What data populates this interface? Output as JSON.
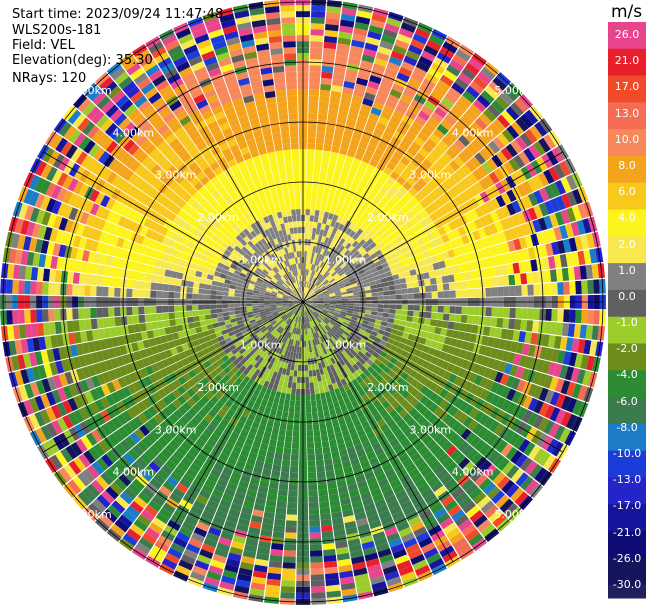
{
  "header": {
    "start_time": "Start time: 2023/09/24 11:47:48",
    "instrument": "WLS200s-181",
    "field": "Field: VEL",
    "elevation": "Elevation(deg): 35.30",
    "nrays": "NRays: 120"
  },
  "colorbar": {
    "unit": "m/s",
    "ticks": [
      "26.0",
      "21.0",
      "17.0",
      "13.0",
      "10.0",
      "8.0",
      "6.0",
      "4.0",
      "2.0",
      "1.0",
      "0.0",
      "-1.0",
      "-2.0",
      "-4.0",
      "-6.0",
      "-8.0",
      "-10.0",
      "-13.0",
      "-17.0",
      "-21.0",
      "-26.0",
      "-30.0"
    ],
    "colors": [
      "#e8458c",
      "#e8458c",
      "#e8202c",
      "#e8202c",
      "#f04a28",
      "#f04a28",
      "#f46c54",
      "#f46c54",
      "#f6885c",
      "#f6885c",
      "#f4a41c",
      "#f4a41c",
      "#f8c81c",
      "#f8c81c",
      "#fcf41c",
      "#fcf41c",
      "#f8e850",
      "#f8e850",
      "#808080",
      "#808080",
      "#606060",
      "#606060",
      "#9ccc2c",
      "#9ccc2c",
      "#6c8c1c",
      "#6c8c1c",
      "#2c8c34",
      "#2c8c34",
      "#3a7c4c",
      "#3a7c4c",
      "#1c7cc8",
      "#1c7cc8",
      "#1c3cd8",
      "#1c3cd8",
      "#2424c8",
      "#2424c8",
      "#14149c",
      "#14149c",
      "#0c0c74",
      "#0c0c74",
      "#14145c",
      "#14145c",
      "#20205c"
    ]
  },
  "chart_data": {
    "type": "heatmap",
    "plot_kind": "PPI radial velocity",
    "field": "VEL",
    "units": "m/s",
    "nrays": 120,
    "elevation_deg": 35.3,
    "range_rings_km": [
      1.0,
      2.0,
      3.0,
      4.0,
      5.0
    ],
    "range_ring_labels": [
      "1.00km",
      "2.00km",
      "3.00km",
      "4.00km",
      "5.00km"
    ],
    "spoke_angles_deg": [
      0,
      30,
      60,
      90,
      120,
      150,
      180,
      210,
      240,
      270,
      300,
      330
    ],
    "color_scale_min": -30.0,
    "color_scale_max": 26.0,
    "velocity_pattern": [
      {
        "range_km_max": 1.5,
        "north_half": 1.0,
        "south_half": -1.0
      },
      {
        "range_km_max": 2.5,
        "north_half": 3.0,
        "south_half": -5.0
      },
      {
        "range_km_max": 3.5,
        "north_half": 7.0,
        "south_half": -6.0
      },
      {
        "range_km_max": 4.3,
        "north_half": 9.0,
        "south_half": -7.0
      }
    ],
    "noise_beyond_km": 4.3
  }
}
